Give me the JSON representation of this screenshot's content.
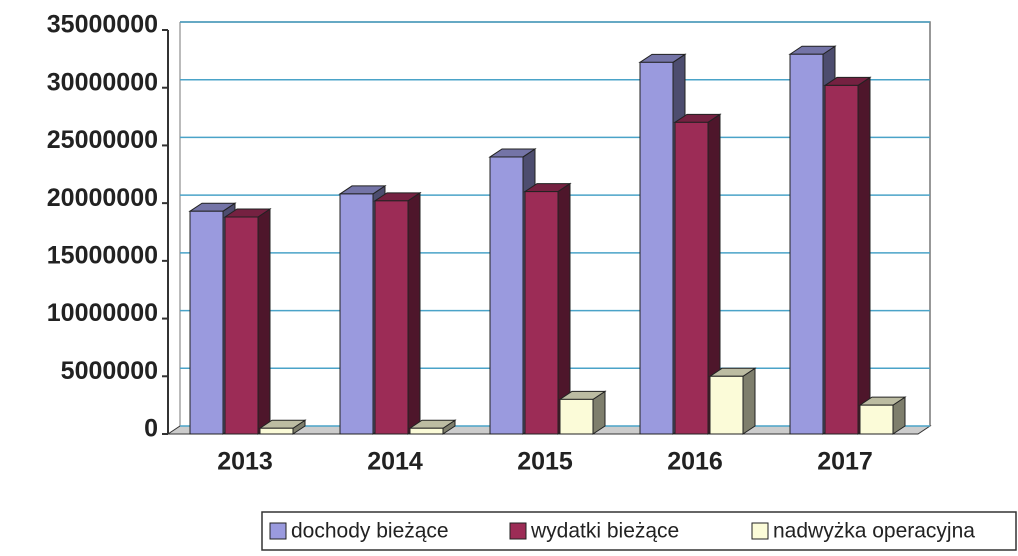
{
  "chart_data": {
    "type": "bar3d",
    "categories": [
      "2013",
      "2014",
      "2015",
      "2016",
      "2017"
    ],
    "series": [
      {
        "name": "dochody bieżące",
        "color": "#9a9ade",
        "values": [
          19300000,
          20800000,
          24000000,
          32200000,
          32900000
        ]
      },
      {
        "name": "wydatki bieżące",
        "color": "#9c2c56",
        "values": [
          18800000,
          20200000,
          21000000,
          27000000,
          30200000
        ]
      },
      {
        "name": "nadwyżka operacyjna",
        "color": "#fbfbd8",
        "values": [
          500000,
          500000,
          3000000,
          5000000,
          2500000
        ]
      }
    ],
    "ylim": [
      0,
      35000000
    ],
    "yticks": [
      0,
      5000000,
      10000000,
      15000000,
      20000000,
      25000000,
      30000000,
      35000000
    ],
    "grid": true,
    "legend": "bottom"
  }
}
